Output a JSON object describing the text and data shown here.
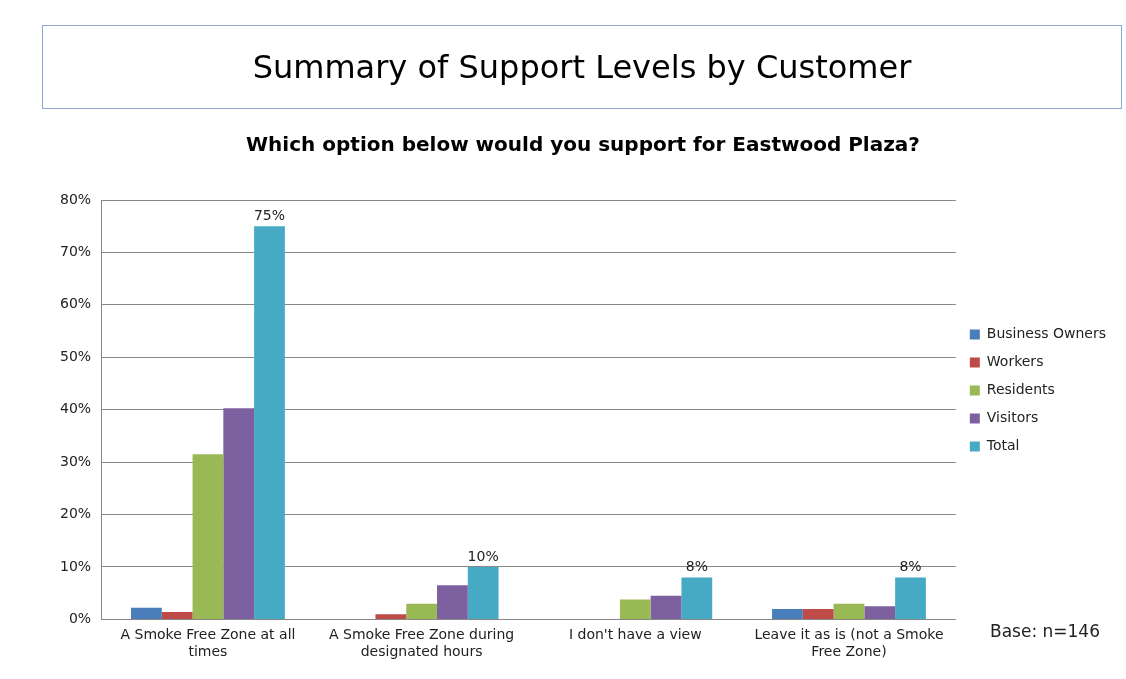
{
  "chart_data": {
    "type": "bar",
    "title": "Summary of Support Levels by Customer",
    "subtitle": "Which option below would you support for Eastwood Plaza?",
    "categories": [
      "A Smoke Free Zone at all times",
      "A Smoke Free Zone during designated hours",
      "I don't have a view",
      "Leave it as is (not a Smoke Free Zone)"
    ],
    "series": [
      {
        "name": "Business Owners",
        "color": "#4a7ebb",
        "values": [
          2.2,
          0,
          0,
          2
        ]
      },
      {
        "name": "Workers",
        "color": "#be4b48",
        "values": [
          1.4,
          1,
          0,
          2
        ]
      },
      {
        "name": "Residents",
        "color": "#98b954",
        "values": [
          31.5,
          3,
          3.8,
          3
        ]
      },
      {
        "name": "Visitors",
        "color": "#7d60a0",
        "values": [
          40.3,
          6.5,
          4.5,
          2.5
        ]
      },
      {
        "name": "Total",
        "color": "#46aac5",
        "values": [
          75,
          10,
          8,
          8
        ],
        "value_labels": [
          "75%",
          "10%",
          "8%",
          "8%"
        ]
      }
    ],
    "ylim": [
      0,
      80
    ],
    "yticks": [
      {
        "value": 0,
        "label": "0%"
      },
      {
        "value": 10,
        "label": "10%"
      },
      {
        "value": 20,
        "label": "20%"
      },
      {
        "value": 30,
        "label": "30%"
      },
      {
        "value": 40,
        "label": "40%"
      },
      {
        "value": 50,
        "label": "50%"
      },
      {
        "value": 60,
        "label": "60%"
      },
      {
        "value": 70,
        "label": "70%"
      },
      {
        "value": 80,
        "label": "80%"
      }
    ],
    "grid": "y",
    "legend": "right",
    "annotations": [
      "Base: n=146"
    ]
  }
}
